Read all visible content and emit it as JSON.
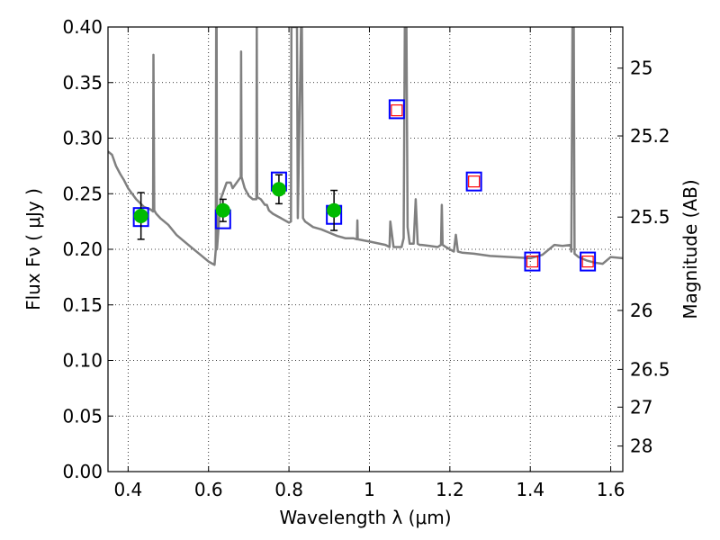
{
  "chart_data": {
    "type": "line",
    "xlabel": "Wavelength  λ (μm)",
    "ylabel": "Flux  Fν  ( μJy )",
    "ylabel_right": "Magnitude (AB)",
    "xlim": [
      0.35,
      1.63
    ],
    "ylim": [
      0.0,
      0.4
    ],
    "grid": true,
    "x_ticks": [
      0.4,
      0.6,
      0.8,
      1.0,
      1.2,
      1.4,
      1.6
    ],
    "x_tick_labels": [
      "0.4",
      "0.6",
      "0.8",
      "1",
      "1.2",
      "1.4",
      "1.6"
    ],
    "y_ticks": [
      0.0,
      0.05,
      0.1,
      0.15,
      0.2,
      0.25,
      0.3,
      0.35,
      0.4
    ],
    "y_tick_labels": [
      "0.00",
      "0.05",
      "0.10",
      "0.15",
      "0.20",
      "0.25",
      "0.30",
      "0.35",
      "0.40"
    ],
    "right_ticks": [
      {
        "label": "25",
        "flux": 0.363
      },
      {
        "label": "25.2",
        "flux": 0.302
      },
      {
        "label": "25.5",
        "flux": 0.229
      },
      {
        "label": "26",
        "flux": 0.145
      },
      {
        "label": "26.5",
        "flux": 0.092
      },
      {
        "label": "27",
        "flux": 0.058
      },
      {
        "label": "28",
        "flux": 0.023
      }
    ],
    "colors": {
      "spectrum": "#808080",
      "observed": "#00bb00",
      "model_box": "#0000ff",
      "upper_box": "#ff0000",
      "errorbar": "#000000"
    },
    "series": [
      {
        "style": "spectrum",
        "x": [
          0.35,
          0.36,
          0.37,
          0.38,
          0.39,
          0.4,
          0.42,
          0.44,
          0.455,
          0.462,
          0.463,
          0.465,
          0.47,
          0.48,
          0.5,
          0.52,
          0.54,
          0.56,
          0.58,
          0.6,
          0.61,
          0.615,
          0.618,
          0.619,
          0.62,
          0.621,
          0.63,
          0.64,
          0.645,
          0.655,
          0.66,
          0.67,
          0.68,
          0.681,
          0.682,
          0.69,
          0.7,
          0.71,
          0.719,
          0.72,
          0.721,
          0.73,
          0.74,
          0.745,
          0.75,
          0.76,
          0.77,
          0.78,
          0.79,
          0.8,
          0.805,
          0.806,
          0.808,
          0.81,
          0.812,
          0.815,
          0.818,
          0.82,
          0.822,
          0.83,
          0.832,
          0.835,
          0.84,
          0.86,
          0.88,
          0.9,
          0.92,
          0.94,
          0.96,
          0.969,
          0.97,
          0.971,
          1.0,
          1.04,
          1.05,
          1.052,
          1.06,
          1.08,
          1.085,
          1.088,
          1.09,
          1.092,
          1.095,
          1.1,
          1.11,
          1.115,
          1.12,
          1.125,
          1.13,
          1.15,
          1.17,
          1.178,
          1.18,
          1.182,
          1.19,
          1.21,
          1.215,
          1.22,
          1.23,
          1.26,
          1.3,
          1.35,
          1.4,
          1.43,
          1.46,
          1.48,
          1.5,
          1.502,
          1.505,
          1.508,
          1.51,
          1.52,
          1.54,
          1.56,
          1.58,
          1.6,
          1.63
        ],
        "y": [
          0.288,
          0.285,
          0.275,
          0.268,
          0.262,
          0.255,
          0.245,
          0.238,
          0.236,
          0.234,
          0.375,
          0.235,
          0.232,
          0.228,
          0.222,
          0.213,
          0.207,
          0.201,
          0.195,
          0.189,
          0.187,
          0.186,
          0.2,
          0.4,
          0.4,
          0.2,
          0.245,
          0.255,
          0.26,
          0.26,
          0.255,
          0.26,
          0.265,
          0.378,
          0.265,
          0.255,
          0.248,
          0.245,
          0.245,
          0.4,
          0.247,
          0.245,
          0.24,
          0.24,
          0.235,
          0.232,
          0.23,
          0.228,
          0.226,
          0.224,
          0.225,
          0.4,
          0.4,
          0.4,
          0.4,
          0.4,
          0.4,
          0.4,
          0.228,
          0.4,
          0.4,
          0.228,
          0.225,
          0.22,
          0.218,
          0.215,
          0.212,
          0.21,
          0.21,
          0.209,
          0.226,
          0.209,
          0.207,
          0.204,
          0.202,
          0.225,
          0.202,
          0.202,
          0.21,
          0.4,
          0.4,
          0.4,
          0.22,
          0.205,
          0.205,
          0.245,
          0.205,
          0.204,
          0.204,
          0.203,
          0.202,
          0.204,
          0.24,
          0.204,
          0.202,
          0.198,
          0.213,
          0.198,
          0.197,
          0.196,
          0.194,
          0.193,
          0.192,
          0.195,
          0.204,
          0.203,
          0.204,
          0.198,
          0.4,
          0.4,
          0.196,
          0.193,
          0.19,
          0.188,
          0.187,
          0.193,
          0.192
        ]
      },
      {
        "style": "model",
        "x": [
          0.432,
          0.636,
          0.775,
          0.912,
          1.068,
          1.26,
          1.405,
          1.543
        ],
        "y": [
          0.229,
          0.227,
          0.261,
          0.231,
          0.326,
          0.261,
          0.189,
          0.189
        ]
      },
      {
        "style": "upper",
        "x": [
          1.068,
          1.26,
          1.405,
          1.543
        ],
        "y": [
          0.325,
          0.261,
          0.189,
          0.189
        ]
      },
      {
        "style": "observed",
        "x": [
          0.432,
          0.636,
          0.775,
          0.912
        ],
        "y": [
          0.23,
          0.235,
          0.254,
          0.235
        ],
        "yerr": [
          0.021,
          0.01,
          0.013,
          0.018
        ]
      }
    ]
  }
}
